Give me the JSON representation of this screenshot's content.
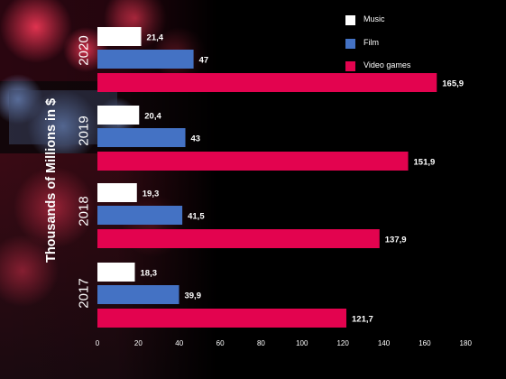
{
  "chart_data": {
    "type": "bar",
    "orientation": "horizontal",
    "categories": [
      "2020",
      "2019",
      "2018",
      "2017"
    ],
    "series": [
      {
        "name": "Music",
        "values": [
          21.4,
          20.4,
          19.3,
          18.3
        ],
        "color": "#ffffff"
      },
      {
        "name": "Film",
        "values": [
          47,
          43,
          41.5,
          39.9
        ],
        "color": "#4472c4"
      },
      {
        "name": "Video games",
        "values": [
          165.9,
          151.9,
          137.9,
          121.7
        ],
        "color": "#e3034f"
      }
    ],
    "data_labels": [
      [
        "21,4",
        "47",
        "165,9"
      ],
      [
        "20,4",
        "43",
        "151,9"
      ],
      [
        "19,3",
        "41,5",
        "137,9"
      ],
      [
        "18,3",
        "39,9",
        "121,7"
      ]
    ],
    "ylabel": "Thousands of Millions in $",
    "xlim": [
      0,
      180
    ],
    "x_ticks": [
      0,
      20,
      40,
      60,
      80,
      100,
      120,
      140,
      160,
      180
    ],
    "x_tick_labels": [
      "0",
      "20",
      "40",
      "60",
      "80",
      "100",
      "120",
      "140",
      "160",
      "180"
    ],
    "grid": false,
    "legend_position": "top-right",
    "background": "#000000"
  }
}
